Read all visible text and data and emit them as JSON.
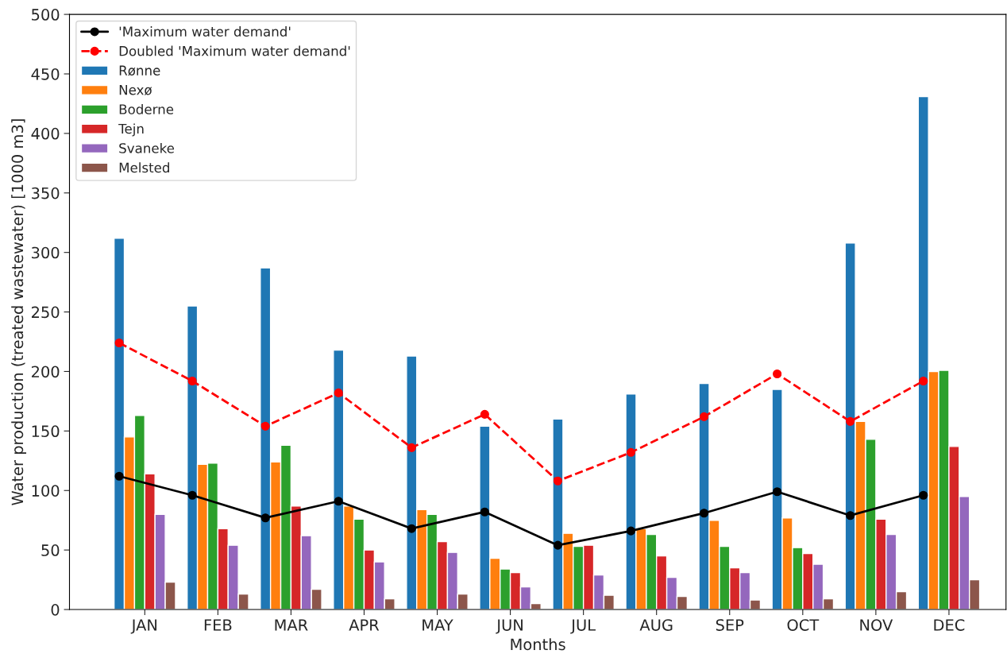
{
  "chart_data": {
    "type": "bar",
    "xlabel": "Months",
    "ylabel": "Water production (treated wastewater) [1000 m3]",
    "categories": [
      "JAN",
      "FEB",
      "MAR",
      "APR",
      "MAY",
      "JUN",
      "JUL",
      "AUG",
      "SEP",
      "OCT",
      "NOV",
      "DEC"
    ],
    "series": [
      {
        "name": "'Maximum water demand'",
        "type": "line",
        "color": "#000000",
        "marker": "circle",
        "line_style": "solid",
        "values": [
          112,
          96,
          77,
          91,
          68,
          82,
          54,
          66,
          81,
          99,
          79,
          96
        ]
      },
      {
        "name": "Doubled 'Maximum water demand'",
        "type": "line",
        "color": "#ff0000",
        "marker": "circle",
        "line_style": "dashed",
        "values": [
          224,
          192,
          154,
          182,
          136,
          164,
          108,
          132,
          162,
          198,
          158,
          192
        ]
      },
      {
        "name": "Rønne",
        "color": "#1f77b4",
        "values": [
          312,
          255,
          287,
          218,
          213,
          154,
          160,
          181,
          190,
          185,
          308,
          431
        ]
      },
      {
        "name": "Nexø",
        "color": "#ff7f0e",
        "values": [
          145,
          122,
          124,
          87,
          84,
          43,
          64,
          68,
          75,
          77,
          158,
          200
        ]
      },
      {
        "name": "Boderne",
        "color": "#2ca02c",
        "values": [
          163,
          123,
          138,
          76,
          80,
          34,
          53,
          63,
          53,
          52,
          143,
          201
        ]
      },
      {
        "name": "Tejn",
        "color": "#d62728",
        "values": [
          114,
          68,
          87,
          50,
          57,
          31,
          54,
          45,
          35,
          47,
          76,
          137
        ]
      },
      {
        "name": "Svaneke",
        "color": "#9467bd",
        "values": [
          80,
          54,
          62,
          40,
          48,
          19,
          29,
          27,
          31,
          38,
          63,
          95
        ]
      },
      {
        "name": "Melsted",
        "color": "#8c564b",
        "values": [
          23,
          13,
          17,
          9,
          13,
          5,
          12,
          11,
          8,
          9,
          15,
          25
        ]
      }
    ],
    "ylim": [
      0,
      500
    ],
    "yticks": [
      0,
      50,
      100,
      150,
      200,
      250,
      300,
      350,
      400,
      450,
      500
    ],
    "grid": false,
    "legend": "top left"
  }
}
